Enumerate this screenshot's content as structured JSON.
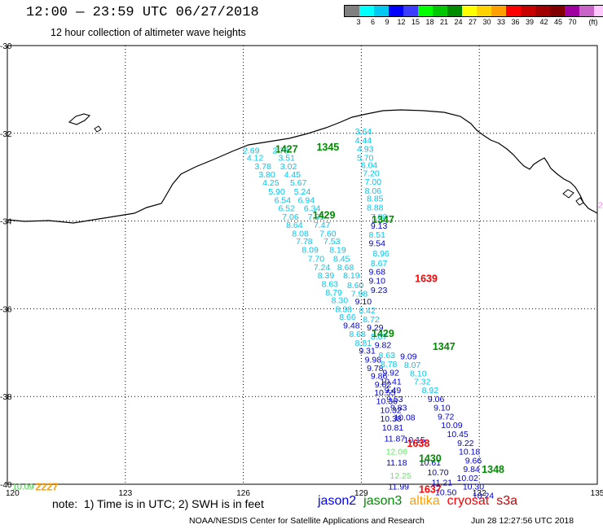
{
  "header": {
    "title": "12:00 — 23:59 UTC 06/27/2018",
    "subtitle": "12 hour collection of altimeter wave heights"
  },
  "colorbar": {
    "colors": [
      "#808080",
      "#00ffff",
      "#00c8f0",
      "#0000ff",
      "#3c3cff",
      "#00ff00",
      "#00c800",
      "#008c00",
      "#ffff00",
      "#ffd200",
      "#ffa000",
      "#ff0000",
      "#c80000",
      "#a00000",
      "#800000",
      "#a000a0",
      "#c864c8",
      "#ffc8ff",
      "#000000"
    ],
    "labels": [
      "3",
      "6",
      "9",
      "12",
      "15",
      "18",
      "21",
      "24",
      "27",
      "30",
      "33",
      "36",
      "39",
      "42",
      "45",
      "70",
      "(ft)"
    ]
  },
  "axes": {
    "lon_labels": [
      "120",
      "123",
      "126",
      "129",
      "132",
      "135"
    ],
    "lat_labels": [
      "-30",
      "-32",
      "-34",
      "-36",
      "-38",
      "-40"
    ]
  },
  "passes": [
    {
      "satellite": "jason2",
      "time": "1427",
      "time_color": "#008c00",
      "track": [
        {
          "v": "2.69",
          "lon": 126.2,
          "lat": -32.38
        },
        {
          "v": "4.12",
          "lon": 126.3,
          "lat": -32.55
        },
        {
          "v": "3.78",
          "lon": 126.5,
          "lat": -32.75
        },
        {
          "v": "3.80",
          "lon": 126.6,
          "lat": -32.93
        },
        {
          "v": "4.25",
          "lon": 126.7,
          "lat": -33.12
        },
        {
          "v": "5.90",
          "lon": 126.85,
          "lat": -33.32
        },
        {
          "v": "6.54",
          "lon": 127.0,
          "lat": -33.52
        },
        {
          "v": "6.52",
          "lon": 127.1,
          "lat": -33.7
        },
        {
          "v": "7.06",
          "lon": 127.2,
          "lat": -33.9
        },
        {
          "v": "8.64",
          "lon": 127.3,
          "lat": -34.08
        },
        {
          "v": "8.08",
          "lon": 127.45,
          "lat": -34.28
        },
        {
          "v": "7.78",
          "lon": 127.55,
          "lat": -34.45
        },
        {
          "v": "8.09",
          "lon": 127.7,
          "lat": -34.65
        },
        {
          "v": "7.70",
          "lon": 127.85,
          "lat": -34.85
        },
        {
          "v": "7.24",
          "lon": 128.0,
          "lat": -35.05
        },
        {
          "v": "8.39",
          "lon": 128.1,
          "lat": -35.23
        },
        {
          "v": "8.63",
          "lon": 128.2,
          "lat": -35.43
        },
        {
          "v": "8.79",
          "lon": 128.3,
          "lat": -35.62
        },
        {
          "v": "8.30",
          "lon": 128.45,
          "lat": -35.8
        },
        {
          "v": "8.38",
          "lon": 128.55,
          "lat": -36.0
        },
        {
          "v": "8.66",
          "lon": 128.65,
          "lat": -36.18
        },
        {
          "v": "9.48",
          "lon": 128.75,
          "lat": -36.37
        },
        {
          "v": "8.68",
          "lon": 128.9,
          "lat": -36.57
        },
        {
          "v": "8.81",
          "lon": 129.05,
          "lat": -36.77
        },
        {
          "v": "9.31",
          "lon": 129.15,
          "lat": -36.95
        },
        {
          "v": "9.98",
          "lon": 129.3,
          "lat": -37.15
        },
        {
          "v": "9.78",
          "lon": 129.35,
          "lat": -37.35
        },
        {
          "v": "9.86",
          "lon": 129.45,
          "lat": -37.52
        },
        {
          "v": "9.62",
          "lon": 129.55,
          "lat": -37.72
        },
        {
          "v": "10.55",
          "lon": 129.6,
          "lat": -37.9
        },
        {
          "v": "10.36",
          "lon": 129.65,
          "lat": -38.1
        },
        {
          "v": "10.32",
          "lon": 129.75,
          "lat": -38.3
        },
        {
          "v": "10.38",
          "lon": 129.75,
          "lat": -38.5
        },
        {
          "v": "10.81",
          "lon": 129.8,
          "lat": -38.7
        },
        {
          "v": "11.87",
          "lon": 129.85,
          "lat": -38.95
        },
        {
          "v": "12.06",
          "lon": 129.9,
          "lat": -39.25
        },
        {
          "v": "11.18",
          "lon": 129.9,
          "lat": -39.5
        },
        {
          "v": "12.25",
          "lon": 130.0,
          "lat": -39.8
        },
        {
          "v": "11.99",
          "lon": 129.95,
          "lat": -40.05
        }
      ]
    },
    {
      "satellite": "jason3",
      "time": "1345",
      "time_color": "#008c00",
      "track": [
        {
          "v": "2.78",
          "lon": 126.95,
          "lat": -32.38
        },
        {
          "v": "3.51",
          "lon": 127.1,
          "lat": -32.55
        },
        {
          "v": "3.02",
          "lon": 127.15,
          "lat": -32.75
        },
        {
          "v": "4.45",
          "lon": 127.25,
          "lat": -32.93
        },
        {
          "v": "5.67",
          "lon": 127.4,
          "lat": -33.12
        },
        {
          "v": "5.24",
          "lon": 127.5,
          "lat": -33.32
        },
        {
          "v": "6.94",
          "lon": 127.6,
          "lat": -33.52
        },
        {
          "v": "6.34",
          "lon": 127.75,
          "lat": -33.7
        },
        {
          "v": "7.55",
          "lon": 127.85,
          "lat": -33.9
        },
        {
          "v": "7.47",
          "lon": 128.0,
          "lat": -34.08
        },
        {
          "v": "7.60",
          "lon": 128.15,
          "lat": -34.28
        },
        {
          "v": "7.53",
          "lon": 128.25,
          "lat": -34.45
        },
        {
          "v": "8.19",
          "lon": 128.4,
          "lat": -34.65
        },
        {
          "v": "8.45",
          "lon": 128.5,
          "lat": -34.85
        },
        {
          "v": "8.68",
          "lon": 128.6,
          "lat": -35.05
        },
        {
          "v": "8.19",
          "lon": 128.75,
          "lat": -35.23
        },
        {
          "v": "8.60",
          "lon": 128.85,
          "lat": -35.45
        },
        {
          "v": "7.98",
          "lon": 128.95,
          "lat": -35.65
        },
        {
          "v": "9.10",
          "lon": 129.05,
          "lat": -35.83
        },
        {
          "v": "8.42",
          "lon": 129.15,
          "lat": -36.03
        },
        {
          "v": "8.72",
          "lon": 129.25,
          "lat": -36.23
        },
        {
          "v": "9.29",
          "lon": 129.35,
          "lat": -36.42
        },
        {
          "v": "8.07",
          "lon": 129.45,
          "lat": -36.62
        },
        {
          "v": "9.82",
          "lon": 129.55,
          "lat": -36.82
        },
        {
          "v": "8.63",
          "lon": 129.65,
          "lat": -37.05
        },
        {
          "v": "8.78",
          "lon": 129.7,
          "lat": -37.25
        },
        {
          "v": "9.92",
          "lon": 129.75,
          "lat": -37.45
        },
        {
          "v": "10.41",
          "lon": 129.75,
          "lat": -37.65
        },
        {
          "v": "9.49",
          "lon": 129.8,
          "lat": -37.85
        },
        {
          "v": "9.53",
          "lon": 129.85,
          "lat": -38.05
        },
        {
          "v": "9.83",
          "lon": 129.95,
          "lat": -38.25
        },
        {
          "v": "10.08",
          "lon": 130.1,
          "lat": -38.47
        },
        {
          "v": "10.15",
          "lon": 130.35,
          "lat": -38.98
        }
      ]
    },
    {
      "satellite": "jason2",
      "time": "1429",
      "time_color": "#008c00",
      "track": [
        {
          "v": "3.64",
          "lon": 129.05,
          "lat": -31.95
        },
        {
          "v": "4.44",
          "lon": 129.05,
          "lat": -32.15
        },
        {
          "v": "4.93",
          "lon": 129.1,
          "lat": -32.35
        },
        {
          "v": "5.70",
          "lon": 129.1,
          "lat": -32.55
        },
        {
          "v": "6.04",
          "lon": 129.2,
          "lat": -32.72
        },
        {
          "v": "7.20",
          "lon": 129.25,
          "lat": -32.9
        },
        {
          "v": "7.00",
          "lon": 129.3,
          "lat": -33.1
        },
        {
          "v": "8.06",
          "lon": 129.3,
          "lat": -33.3
        },
        {
          "v": "8.85",
          "lon": 129.35,
          "lat": -33.48
        },
        {
          "v": "8.88",
          "lon": 129.35,
          "lat": -33.68
        },
        {
          "v": "7.88",
          "lon": 129.45,
          "lat": -33.9
        },
        {
          "v": "9.13",
          "lon": 129.45,
          "lat": -34.1
        },
        {
          "v": "8.51",
          "lon": 129.4,
          "lat": -34.3
        },
        {
          "v": "9.54",
          "lon": 129.4,
          "lat": -34.5
        },
        {
          "v": "8.96",
          "lon": 129.5,
          "lat": -34.73
        },
        {
          "v": "8.67",
          "lon": 129.45,
          "lat": -34.95
        },
        {
          "v": "9.68",
          "lon": 129.4,
          "lat": -35.15
        },
        {
          "v": "9.10",
          "lon": 129.4,
          "lat": -35.35
        },
        {
          "v": "9.23",
          "lon": 129.45,
          "lat": -35.57
        }
      ]
    },
    {
      "satellite": "jason3",
      "time": "1347",
      "time_color": "#008c00",
      "track": [
        {
          "v": "9.09",
          "lon": 130.2,
          "lat": -37.08
        },
        {
          "v": "8.07",
          "lon": 130.3,
          "lat": -37.27
        },
        {
          "v": "8.10",
          "lon": 130.45,
          "lat": -37.47
        },
        {
          "v": "7.32",
          "lon": 130.55,
          "lat": -37.65
        },
        {
          "v": "8.92",
          "lon": 130.75,
          "lat": -37.85
        },
        {
          "v": "9.06",
          "lon": 130.9,
          "lat": -38.05
        },
        {
          "v": "9.10",
          "lon": 131.05,
          "lat": -38.25
        },
        {
          "v": "9.72",
          "lon": 131.15,
          "lat": -38.45
        },
        {
          "v": "10.09",
          "lon": 131.3,
          "lat": -38.65
        },
        {
          "v": "10.45",
          "lon": 131.45,
          "lat": -38.85
        },
        {
          "v": "9.22",
          "lon": 131.65,
          "lat": -39.05
        },
        {
          "v": "10.18",
          "lon": 131.75,
          "lat": -39.25
        },
        {
          "v": "9.66",
          "lon": 131.85,
          "lat": -39.45
        },
        {
          "v": "9.84",
          "lon": 131.8,
          "lat": -39.65
        },
        {
          "v": "10.02",
          "lon": 131.7,
          "lat": -39.85
        },
        {
          "v": "10.30",
          "lon": 131.85,
          "lat": -40.05
        },
        {
          "v": "10.24",
          "lon": 132.1,
          "lat": -40.25
        }
      ]
    },
    {
      "satellite": "jason2",
      "time": "1430",
      "time_color": "#008c00",
      "track": [
        {
          "v": "10.61",
          "lon": 130.75,
          "lat": -39.5
        },
        {
          "v": "10.70",
          "lon": 130.95,
          "lat": -39.72
        },
        {
          "v": "11.21",
          "lon": 131.05,
          "lat": -39.95
        },
        {
          "v": "10.50",
          "lon": 131.15,
          "lat": -40.18
        }
      ]
    },
    {
      "satellite": "cryosat",
      "time": "1639",
      "time_color": "#ff0000",
      "track": []
    },
    {
      "satellite": "cryosat",
      "time": "1638",
      "time_color": "#ff0000",
      "track": []
    },
    {
      "satellite": "jason3",
      "time": "1348",
      "time_color": "#008c00",
      "track": []
    },
    {
      "satellite": "altika",
      "time": "2227",
      "time_color": "#ffa000",
      "track": [
        {
          "v": "10.09",
          "lon": 120.4,
          "lat": -40.05
        }
      ]
    }
  ],
  "pass_time_positions_note": "times placed at lon/lat",
  "pass_time_labels": [
    {
      "text": "1427",
      "lon": 127.1,
      "lat": -32.35,
      "color": "#008c00"
    },
    {
      "text": "1345",
      "lon": 128.15,
      "lat": -32.3,
      "color": "#008c00"
    },
    {
      "text": "1429",
      "lon": 128.05,
      "lat": -33.85,
      "color": "#008c00"
    },
    {
      "text": "1347",
      "lon": 129.55,
      "lat": -33.95,
      "color": "#008c00"
    },
    {
      "text": "1639",
      "lon": 130.65,
      "lat": -35.3,
      "color": "#ff0000"
    },
    {
      "text": "1429",
      "lon": 129.55,
      "lat": -36.55,
      "color": "#008c00"
    },
    {
      "text": "1347",
      "lon": 131.1,
      "lat": -36.85,
      "color": "#008c00"
    },
    {
      "text": "1638",
      "lon": 130.45,
      "lat": -39.05,
      "color": "#ff0000"
    },
    {
      "text": "1430",
      "lon": 130.75,
      "lat": -39.4,
      "color": "#008c00"
    },
    {
      "text": "1348",
      "lon": 132.35,
      "lat": -39.65,
      "color": "#008c00"
    },
    {
      "text": "1637",
      "lon": 130.75,
      "lat": -40.1,
      "color": "#ff0000"
    },
    {
      "text": "2227",
      "lon": 121.0,
      "lat": -40.05,
      "color": "#ffa000"
    }
  ],
  "edge_value": {
    "text": "24",
    "color": "#ff80ff"
  },
  "footer": {
    "note": "note:  1) Time is in UTC; 2) SWH is in feet",
    "legend": [
      {
        "name": "jason2",
        "color": "#0000ff"
      },
      {
        "name": "jason3",
        "color": "#008c00"
      },
      {
        "name": "altika",
        "color": "#ffa000"
      },
      {
        "name": "cryosat",
        "color": "#ff0000"
      },
      {
        "name": "s3a",
        "color": "#c80000"
      }
    ],
    "credit": "NOAA/NESDIS Center for Satellite Applications and Research",
    "timestamp": "Jun 28 12:27:56 UTC 2018"
  },
  "value_color_rule": "values < 9 ft cyan, 9-12 ft blue, 12-15 ft light green"
}
